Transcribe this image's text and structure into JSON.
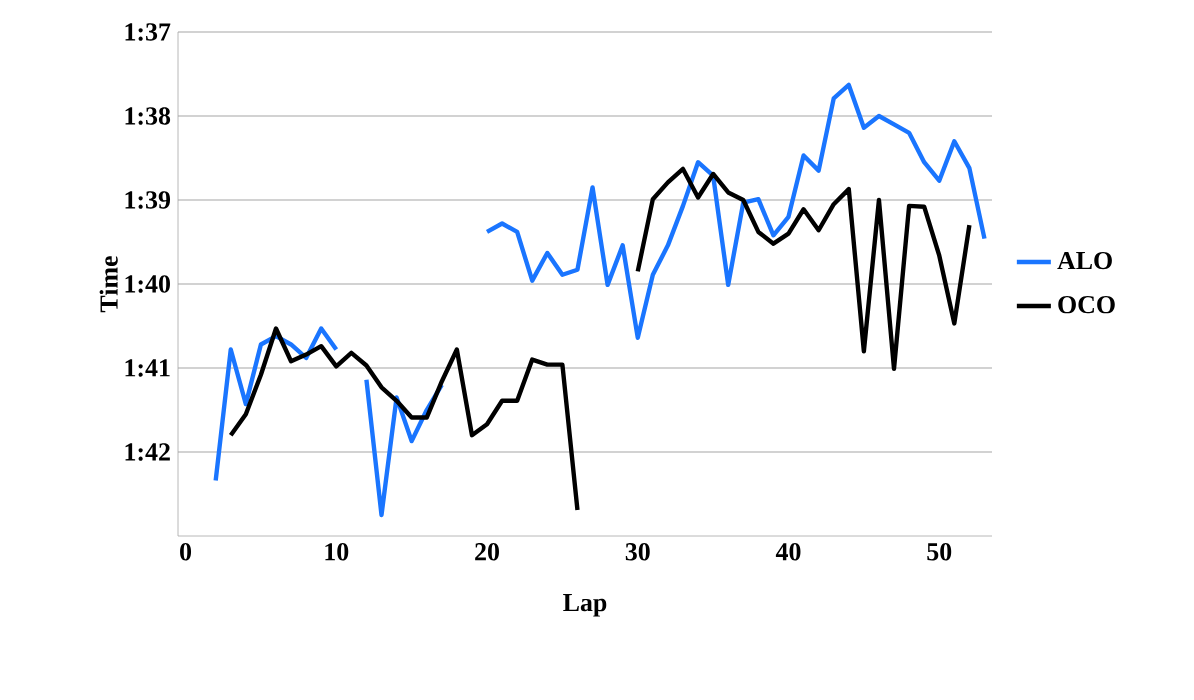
{
  "chart_data": {
    "type": "line",
    "xlabel": "Lap",
    "ylabel": "Time",
    "x": [
      2,
      3,
      4,
      5,
      6,
      7,
      8,
      9,
      10,
      11,
      12,
      13,
      14,
      15,
      16,
      17,
      18,
      19,
      20,
      21,
      22,
      23,
      24,
      25,
      26,
      27,
      28,
      29,
      30,
      31,
      32,
      33,
      34,
      35,
      36,
      37,
      38,
      39,
      40,
      41,
      42,
      43,
      44,
      45,
      46,
      47,
      48,
      49,
      50,
      51,
      52,
      53
    ],
    "series": [
      {
        "name": "ALO",
        "color": "#1a75ff",
        "values": [
          102.34,
          100.78,
          101.43,
          100.72,
          100.62,
          100.72,
          100.88,
          100.53,
          100.78,
          null,
          101.14,
          102.75,
          101.35,
          101.87,
          101.5,
          101.2,
          null,
          null,
          99.38,
          99.28,
          99.38,
          99.96,
          99.63,
          99.89,
          99.83,
          98.85,
          100.01,
          99.54,
          100.64,
          99.89,
          99.54,
          99.07,
          98.55,
          98.71,
          100.01,
          99.03,
          98.99,
          99.42,
          99.2,
          98.47,
          98.65,
          97.79,
          97.63,
          98.14,
          98.0,
          98.1,
          98.2,
          98.55,
          98.77,
          98.3,
          98.62,
          99.46
        ]
      },
      {
        "name": "OCO",
        "color": "#000000",
        "values": [
          null,
          101.8,
          101.55,
          101.08,
          100.53,
          100.92,
          100.84,
          100.74,
          100.98,
          100.82,
          100.97,
          101.23,
          101.39,
          101.59,
          101.59,
          101.16,
          100.78,
          101.8,
          101.67,
          101.39,
          101.39,
          100.9,
          100.96,
          100.96,
          102.69,
          null,
          null,
          null,
          99.85,
          98.99,
          98.79,
          98.63,
          98.97,
          98.69,
          98.91,
          99.0,
          99.38,
          99.52,
          99.4,
          99.11,
          99.36,
          99.05,
          98.87,
          100.8,
          99.0,
          101.01,
          99.07,
          99.08,
          99.66,
          100.47,
          99.3,
          null
        ]
      }
    ],
    "xlim": [
      -0.5,
      53.5
    ],
    "xticks": [
      0,
      10,
      20,
      30,
      40,
      50
    ],
    "ylim": [
      103,
      97
    ],
    "yticks": [
      {
        "value": 97,
        "label": "1:37"
      },
      {
        "value": 98,
        "label": "1:38"
      },
      {
        "value": 99,
        "label": "1:39"
      },
      {
        "value": 100,
        "label": "1:40"
      },
      {
        "value": 101,
        "label": "1:41"
      },
      {
        "value": 102,
        "label": "1:42"
      }
    ],
    "grid": "y",
    "legend": "right"
  }
}
